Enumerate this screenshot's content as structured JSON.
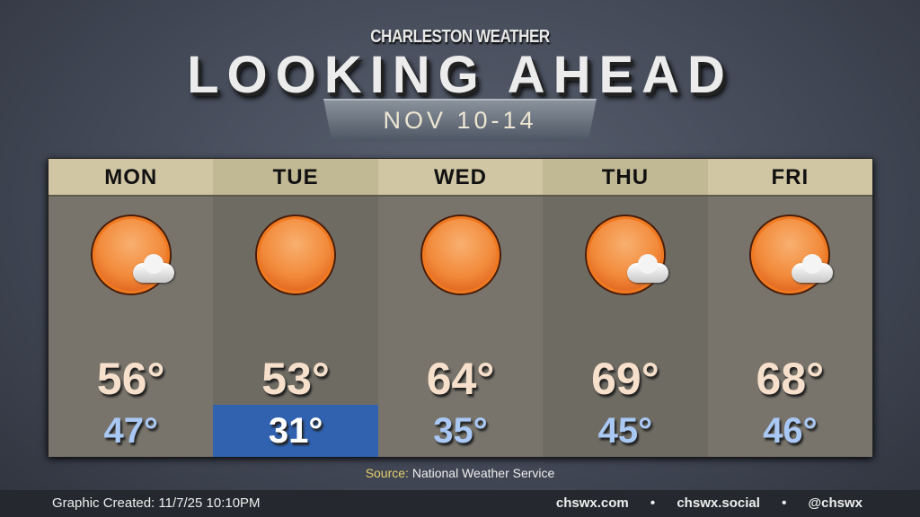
{
  "header": {
    "brand": "CHARLESTON WEATHER",
    "title": "LOOKING AHEAD",
    "dates": "NOV 10-14"
  },
  "days": [
    {
      "day": "MON",
      "icon": "sun-cloud-icon",
      "high": "56°",
      "low": "47°"
    },
    {
      "day": "TUE",
      "icon": "sun-icon",
      "high": "53°",
      "low": "31°"
    },
    {
      "day": "WED",
      "icon": "sun-icon",
      "high": "64°",
      "low": "35°"
    },
    {
      "day": "THU",
      "icon": "sun-cloud-icon",
      "high": "69°",
      "low": "45°"
    },
    {
      "day": "FRI",
      "icon": "sun-cloud-icon",
      "high": "68°",
      "low": "46°"
    }
  ],
  "colors": {
    "cold_highlight": "#3062b0",
    "low_text": "#a9c8f4",
    "high_text": "#f6e0cc"
  },
  "source": {
    "label": "Source:",
    "value": "National Weather Service"
  },
  "footer": {
    "created_label": "Graphic Created:",
    "created_value": "11/7/25 10:10PM",
    "links": [
      "chswx.com",
      "chswx.social",
      "@chswx"
    ],
    "separator": "•"
  }
}
